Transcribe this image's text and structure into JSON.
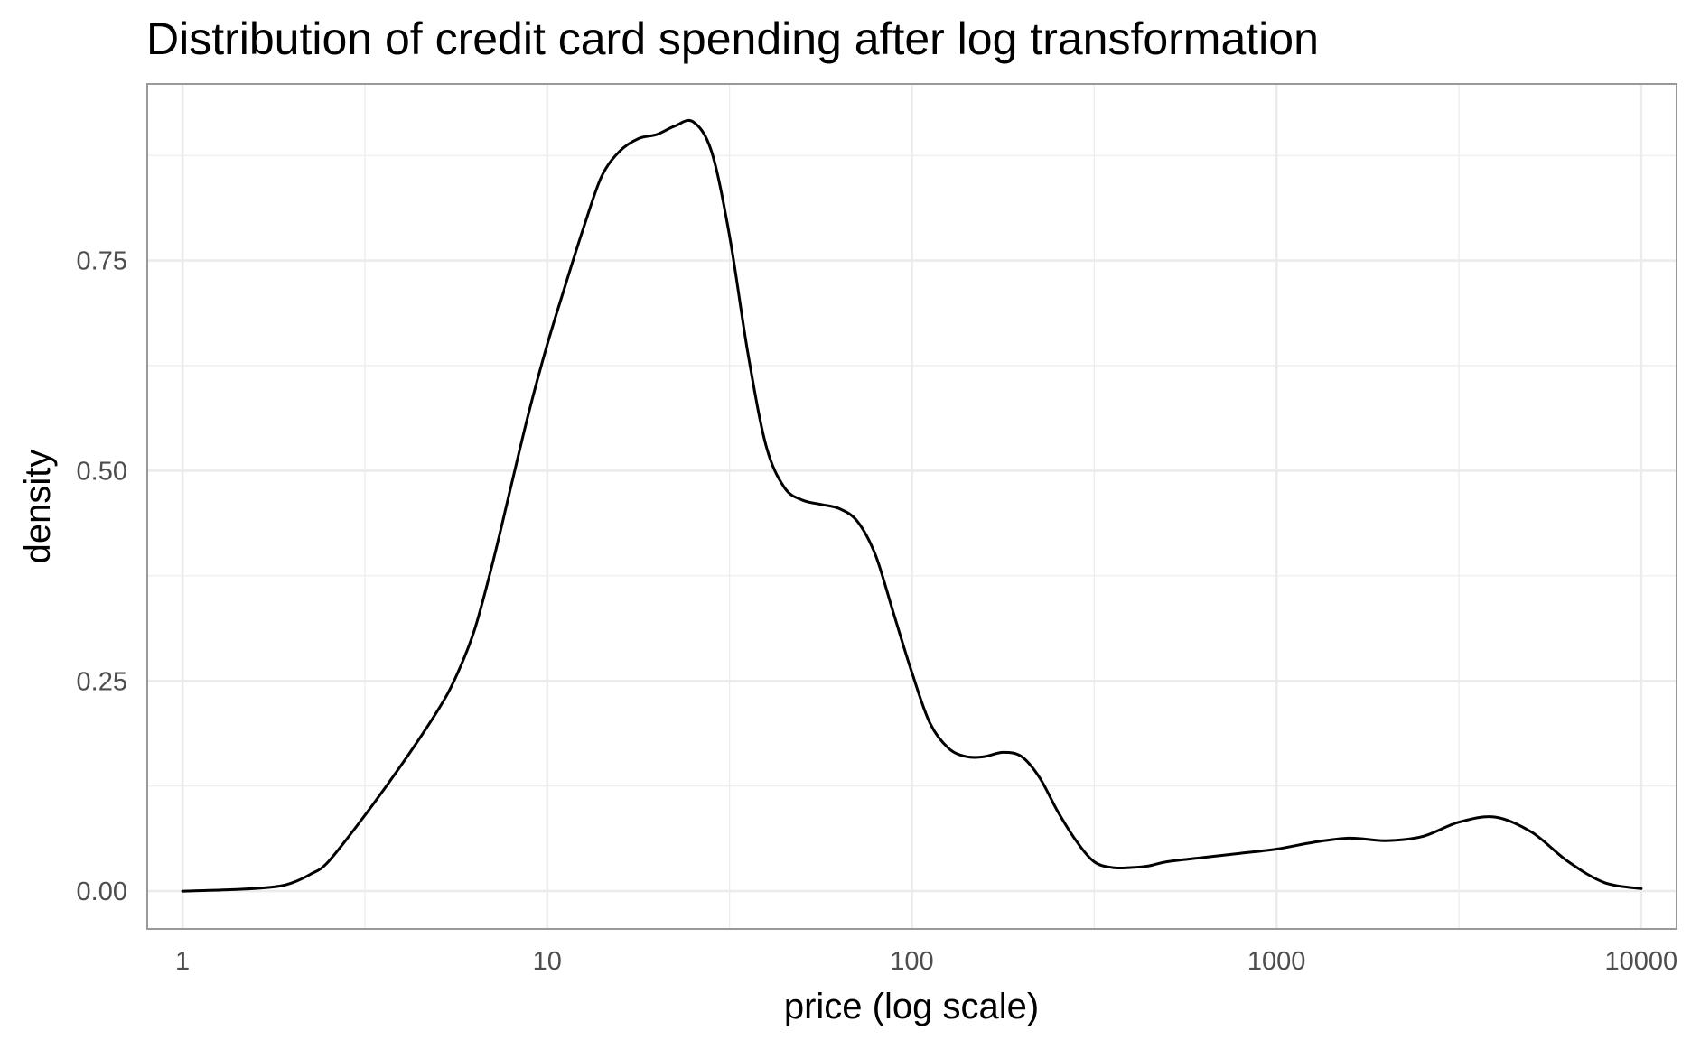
{
  "chart_data": {
    "type": "line",
    "title": "Distribution of credit card spending after log transformation",
    "xlabel": "price (log scale)",
    "ylabel": "density",
    "x_scale": "log10",
    "xlim": [
      0.8,
      12500
    ],
    "ylim": [
      -0.045,
      0.96
    ],
    "x_ticks": [
      1,
      10,
      100,
      1000,
      10000
    ],
    "x_tick_labels": [
      "1",
      "10",
      "100",
      "1000",
      "10000"
    ],
    "y_ticks": [
      0,
      0.25,
      0.5,
      0.75
    ],
    "y_tick_labels": [
      "0.00",
      "0.25",
      "0.50",
      "0.75"
    ],
    "grid": true,
    "legend": "none",
    "colors": {
      "line": "#000000",
      "grid": "#ebebeb",
      "panel_border": "#999999",
      "background": "#ffffff"
    },
    "series": [
      {
        "x": [
          1,
          1.41,
          1.78,
          2.0,
          2.24,
          2.51,
          3.16,
          3.98,
          5.01,
          5.62,
          6.31,
          7.08,
          7.94,
          8.91,
          10.0,
          11.2,
          12.6,
          14.1,
          15.8,
          17.8,
          20.0,
          22.4,
          25.1,
          28.2,
          31.6,
          35.5,
          39.8,
          44.7,
          50.1,
          56.2,
          63.1,
          70.8,
          79.4,
          89.1,
          100,
          112,
          126,
          141,
          158,
          178,
          200,
          224,
          251,
          282,
          316,
          355,
          398,
          447,
          501,
          631,
          794,
          1000,
          1259,
          1585,
          1995,
          2512,
          3162,
          3981,
          5012,
          6310,
          7943,
          10000
        ],
        "y": [
          0.0,
          0.002,
          0.005,
          0.01,
          0.02,
          0.035,
          0.09,
          0.15,
          0.215,
          0.255,
          0.31,
          0.39,
          0.48,
          0.57,
          0.65,
          0.72,
          0.79,
          0.85,
          0.88,
          0.895,
          0.9,
          0.91,
          0.915,
          0.88,
          0.78,
          0.64,
          0.53,
          0.48,
          0.465,
          0.46,
          0.455,
          0.44,
          0.4,
          0.33,
          0.26,
          0.2,
          0.17,
          0.16,
          0.16,
          0.165,
          0.16,
          0.135,
          0.095,
          0.06,
          0.035,
          0.028,
          0.028,
          0.03,
          0.035,
          0.04,
          0.045,
          0.05,
          0.058,
          0.063,
          0.06,
          0.065,
          0.082,
          0.088,
          0.07,
          0.035,
          0.01,
          0.003
        ]
      }
    ]
  }
}
